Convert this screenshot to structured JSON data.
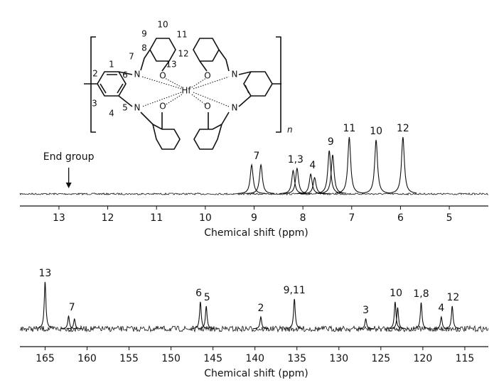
{
  "structure": {
    "numbers": [
      "1",
      "2",
      "3",
      "4",
      "5",
      "6",
      "7",
      "8",
      "9",
      "10",
      "11",
      "12",
      "13"
    ],
    "atoms": [
      "N",
      "N",
      "N",
      "N",
      "O",
      "O",
      "O",
      "O",
      "Hf"
    ],
    "repeat": "n"
  },
  "chart_data": [
    {
      "type": "spectrum",
      "xlabel": "Chemical shift (ppm)",
      "xlim": [
        13.8,
        4.2
      ],
      "xticks": [
        13,
        12,
        11,
        10,
        9,
        8,
        7,
        6,
        5
      ],
      "peaks": {
        "x": [
          9.05,
          8.86,
          8.2,
          8.12,
          7.84,
          7.76,
          7.46,
          7.39,
          7.05,
          6.5,
          5.95
        ],
        "values": [
          41,
          41,
          33,
          36,
          28,
          23,
          61,
          55,
          80,
          76,
          80
        ]
      },
      "annotations": [
        {
          "label": "7",
          "x": 8.95
        },
        {
          "label": "1,3",
          "x": 8.15
        },
        {
          "label": "4",
          "x": 7.8
        },
        {
          "label": "9",
          "x": 7.43
        },
        {
          "label": "11",
          "x": 7.05
        },
        {
          "label": "10",
          "x": 6.5
        },
        {
          "label": "12",
          "x": 5.95
        }
      ],
      "marker": {
        "label": "End group",
        "x": 12.8
      }
    },
    {
      "type": "spectrum",
      "xlabel": "Chemical shift (ppm)",
      "xlim": [
        168,
        112.2
      ],
      "xticks": [
        165,
        160,
        155,
        150,
        145,
        140,
        135,
        130,
        125,
        120,
        115
      ],
      "peaks": {
        "x": [
          165.0,
          162.2,
          161.5,
          146.5,
          145.8,
          139.3,
          135.3,
          126.8,
          123.3,
          123.0,
          120.2,
          117.8,
          116.5
        ],
        "values": [
          66,
          18,
          14,
          38,
          32,
          17,
          42,
          14,
          38,
          30,
          37,
          17,
          32
        ]
      },
      "annotations": [
        {
          "label": "13",
          "x": 165.0
        },
        {
          "label": "7",
          "x": 161.8
        },
        {
          "label": "6",
          "x": 146.7
        },
        {
          "label": "5",
          "x": 145.7
        },
        {
          "label": "2",
          "x": 139.3
        },
        {
          "label": "9,11",
          "x": 135.3
        },
        {
          "label": "3",
          "x": 126.8
        },
        {
          "label": "10",
          "x": 123.2
        },
        {
          "label": "1,8",
          "x": 120.2
        },
        {
          "label": "4",
          "x": 117.8
        },
        {
          "label": "12",
          "x": 116.4
        }
      ]
    }
  ]
}
